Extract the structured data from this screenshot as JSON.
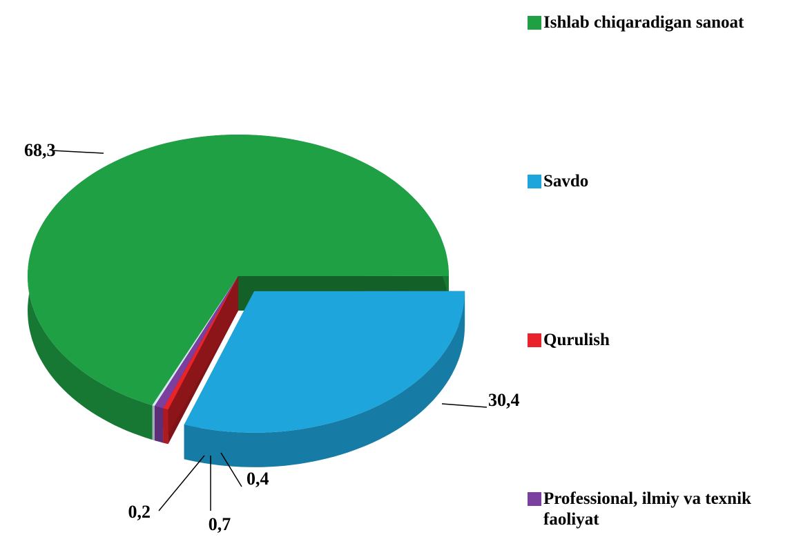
{
  "chart_data": {
    "type": "pie",
    "categories": [
      "Ishlab chiqaradigan sanoat",
      "Savdo",
      "Qurulish",
      "Professional, ilmiy va texnik faoliyat",
      null
    ],
    "values": [
      68.3,
      30.4,
      0.4,
      0.7,
      0.2
    ],
    "value_labels": [
      "68,3",
      "30,4",
      "0,4",
      "0,7",
      "0,2"
    ],
    "colors": [
      "#1fa045",
      "#1ea5dc",
      "#e8232a",
      "#7b3fa0",
      "#d8e8f0"
    ],
    "legend": "right"
  }
}
